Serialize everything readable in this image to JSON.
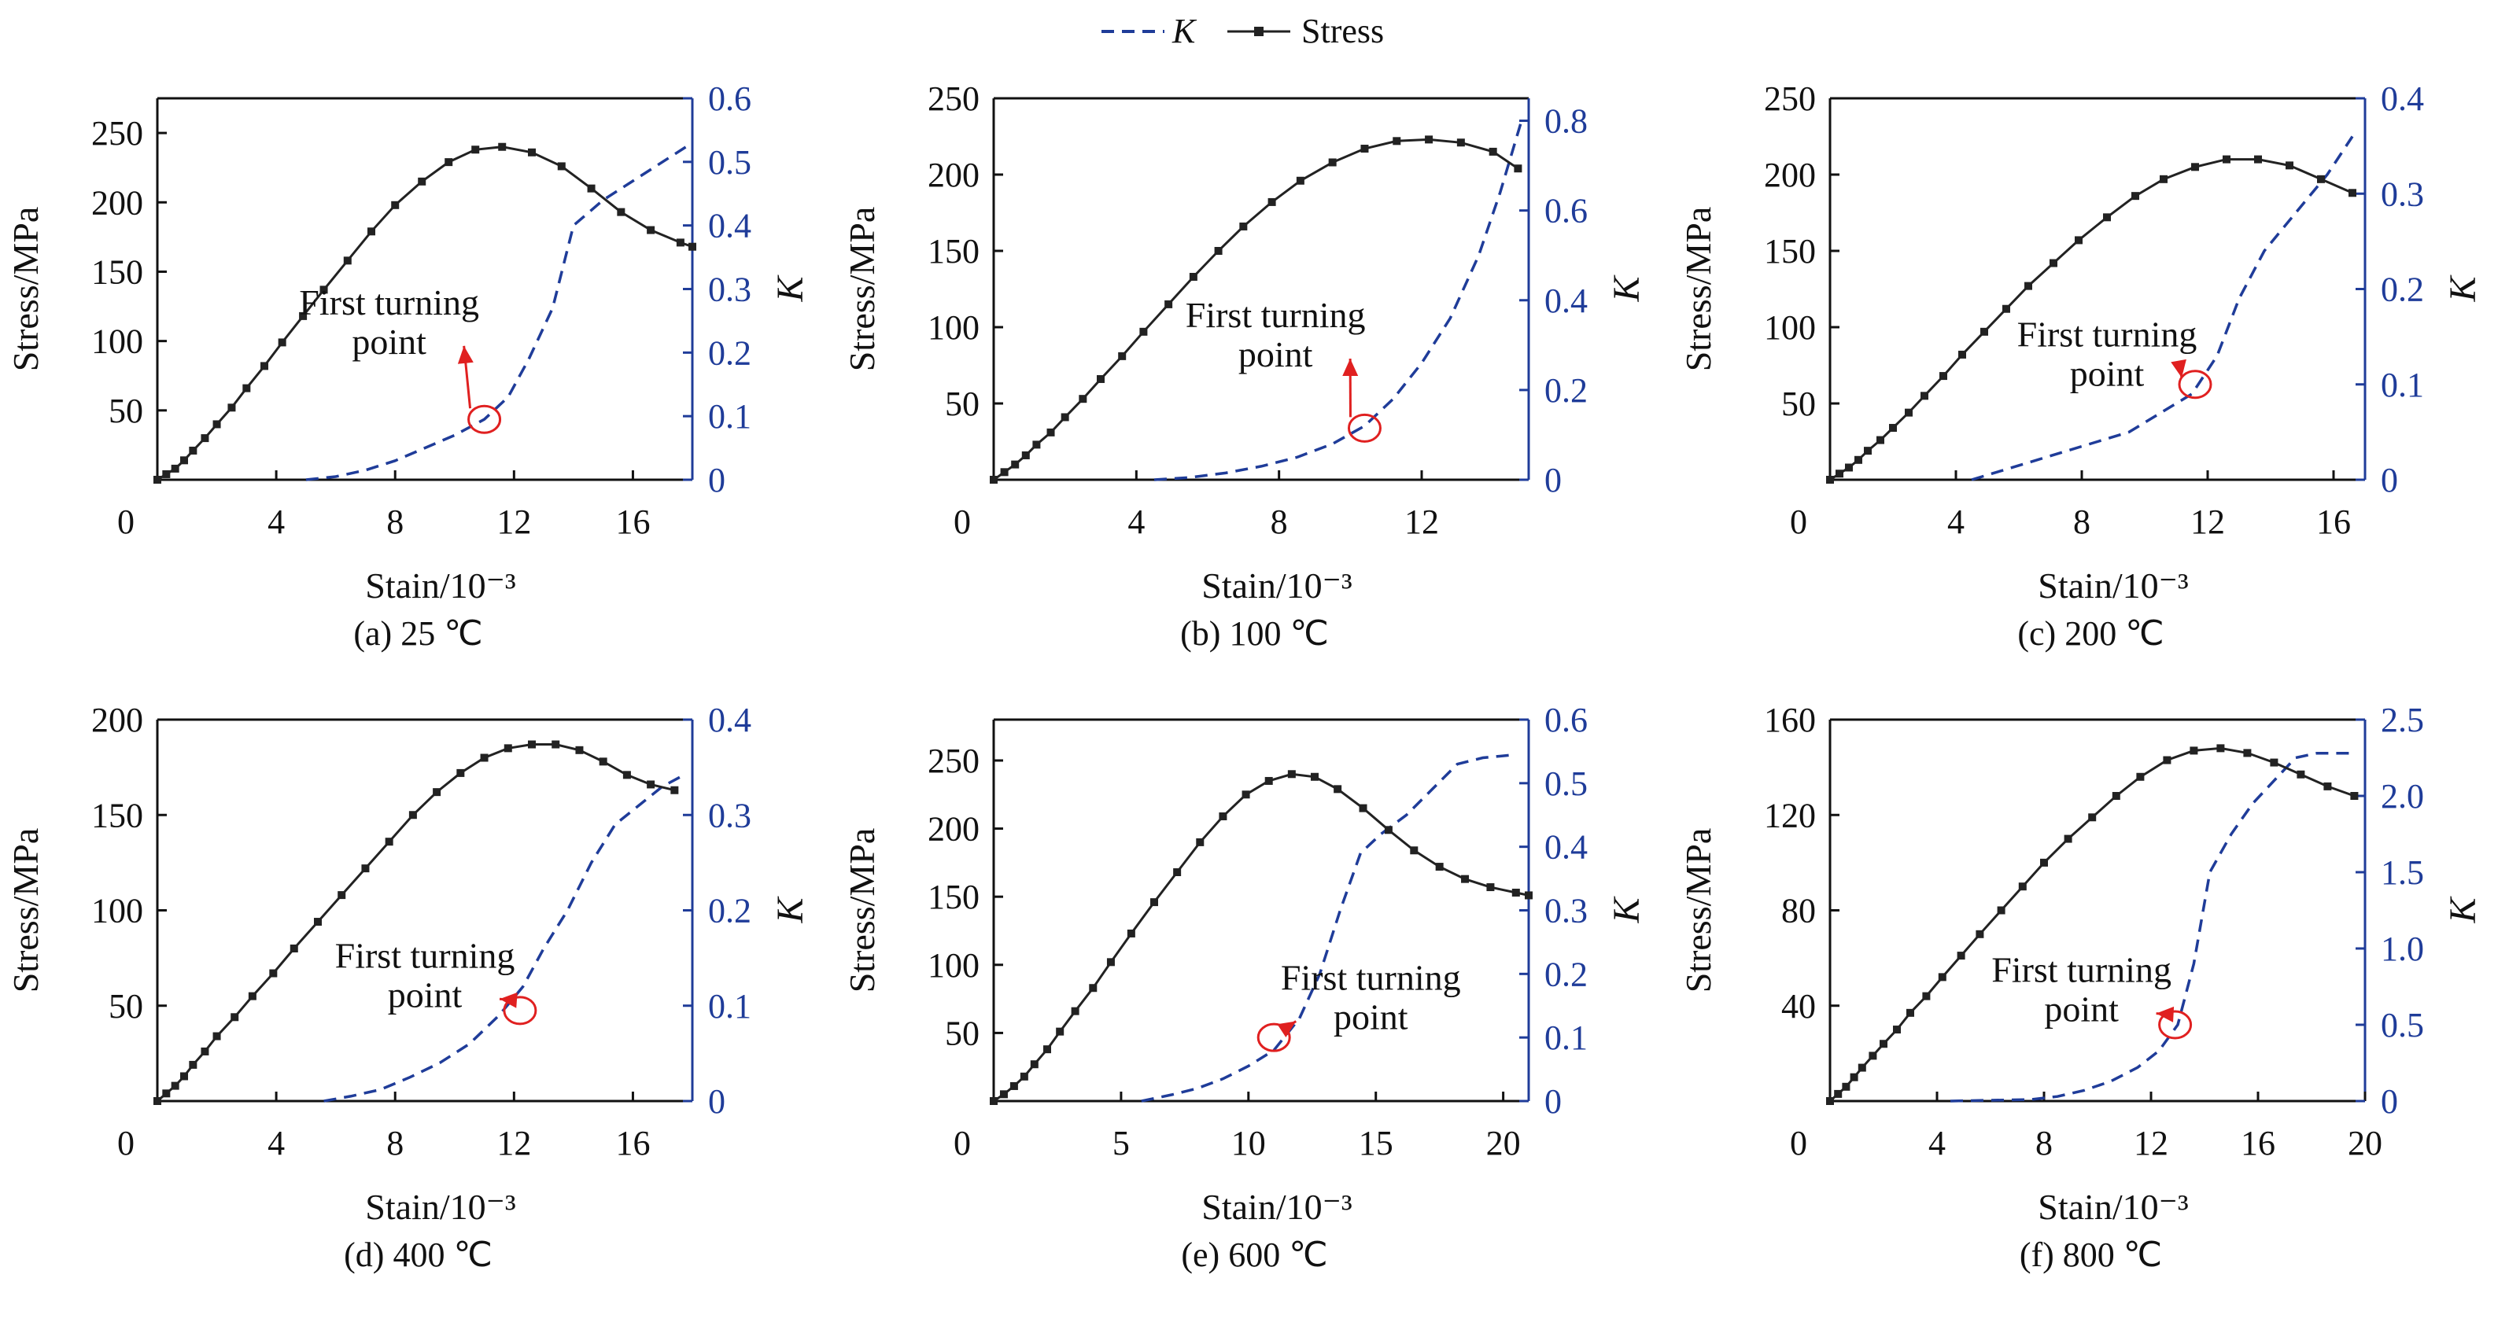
{
  "legend": {
    "k_label": "K",
    "stress_label": "Stress",
    "k_color": "#1f3c99",
    "stress_color": "#222222"
  },
  "annotation_text": [
    "First turning",
    "point"
  ],
  "chart_data": [
    {
      "type": "line",
      "caption": "(a) 25 ℃",
      "xlabel": "Stain/10⁻³",
      "ylabel": "Stress/MPa",
      "y2label": "K",
      "xlim": [
        0,
        18
      ],
      "xticks": [
        0,
        4,
        8,
        12,
        16
      ],
      "ylim": [
        0,
        275
      ],
      "yticks": [
        50,
        100,
        150,
        200,
        250
      ],
      "y2lim": [
        0,
        0.6
      ],
      "y2ticks": [
        0,
        0.1,
        0.2,
        0.3,
        0.4,
        0.5,
        0.6
      ],
      "y2ticklabels": [
        "0",
        "0.1",
        "0.2",
        "0.3",
        "0.4",
        "0.5",
        "0.6"
      ],
      "stress": {
        "x": [
          0,
          0.3,
          0.6,
          0.9,
          1.2,
          1.6,
          2.0,
          2.5,
          3.0,
          3.6,
          4.2,
          4.9,
          5.6,
          6.4,
          7.2,
          8.0,
          8.9,
          9.8,
          10.7,
          11.6,
          12.6,
          13.6,
          14.6,
          15.6,
          16.6,
          17.6,
          18.0
        ],
        "y": [
          0,
          4,
          8,
          14,
          21,
          30,
          40,
          52,
          66,
          82,
          99,
          118,
          137,
          158,
          179,
          198,
          215,
          229,
          238,
          240,
          236,
          226,
          210,
          193,
          180,
          171,
          168
        ]
      },
      "k": {
        "x": [
          5.0,
          6.0,
          7.0,
          8.0,
          9.0,
          10.0,
          11.0,
          11.8,
          12.5,
          13.3,
          14.0,
          15.0,
          16.0,
          17.0,
          18.0
        ],
        "y": [
          0,
          0.005,
          0.015,
          0.03,
          0.05,
          0.07,
          0.095,
          0.13,
          0.19,
          0.27,
          0.4,
          0.44,
          0.47,
          0.5,
          0.53
        ]
      },
      "circle": {
        "x": 11.0,
        "y": 0.095
      },
      "label_pos": {
        "x": 7.8,
        "y": 0.26
      }
    },
    {
      "type": "line",
      "caption": "(b) 100 ℃",
      "xlabel": "Stain/10⁻³",
      "ylabel": "Stress/MPa",
      "y2label": "K",
      "xlim": [
        0,
        15
      ],
      "xticks": [
        0,
        4,
        8,
        12
      ],
      "ylim": [
        0,
        250
      ],
      "yticks": [
        50,
        100,
        150,
        200,
        250
      ],
      "y2lim": [
        0,
        0.85
      ],
      "y2ticks": [
        0,
        0.2,
        0.4,
        0.6,
        0.8
      ],
      "y2ticklabels": [
        "0",
        "0.2",
        "0.4",
        "0.6",
        "0.8"
      ],
      "stress": {
        "x": [
          0,
          0.3,
          0.6,
          0.9,
          1.2,
          1.6,
          2.0,
          2.5,
          3.0,
          3.6,
          4.2,
          4.9,
          5.6,
          6.3,
          7.0,
          7.8,
          8.6,
          9.5,
          10.4,
          11.3,
          12.2,
          13.1,
          14.0,
          14.7
        ],
        "y": [
          0,
          5,
          10,
          16,
          23,
          31,
          41,
          53,
          66,
          81,
          97,
          115,
          133,
          150,
          166,
          182,
          196,
          208,
          217,
          222,
          223,
          221,
          215,
          204
        ]
      },
      "k": {
        "x": [
          4.5,
          5.5,
          6.5,
          7.5,
          8.5,
          9.5,
          10.4,
          11.2,
          12.0,
          12.8,
          13.6,
          14.2,
          14.8
        ],
        "y": [
          0,
          0.005,
          0.015,
          0.03,
          0.05,
          0.08,
          0.12,
          0.18,
          0.26,
          0.36,
          0.5,
          0.64,
          0.8
        ]
      },
      "circle": {
        "x": 10.4,
        "y": 0.115
      },
      "label_pos": {
        "x": 7.9,
        "y": 0.34
      }
    },
    {
      "type": "line",
      "caption": "(c) 200 ℃",
      "xlabel": "Stain/10⁻³",
      "ylabel": "Stress/MPa",
      "y2label": "K",
      "xlim": [
        0,
        17
      ],
      "xticks": [
        0,
        4,
        8,
        12,
        16
      ],
      "ylim": [
        0,
        250
      ],
      "yticks": [
        50,
        100,
        150,
        200,
        250
      ],
      "y2lim": [
        0,
        0.4
      ],
      "y2ticks": [
        0,
        0.1,
        0.2,
        0.3,
        0.4
      ],
      "y2ticklabels": [
        "0",
        "0.1",
        "0.2",
        "0.3",
        "0.4"
      ],
      "stress": {
        "x": [
          0,
          0.3,
          0.6,
          0.9,
          1.2,
          1.6,
          2.0,
          2.5,
          3.0,
          3.6,
          4.2,
          4.9,
          5.6,
          6.3,
          7.1,
          7.9,
          8.8,
          9.7,
          10.6,
          11.6,
          12.6,
          13.6,
          14.6,
          15.6,
          16.6
        ],
        "y": [
          0,
          4,
          8,
          13,
          19,
          26,
          34,
          44,
          55,
          68,
          82,
          97,
          112,
          127,
          142,
          157,
          172,
          186,
          197,
          205,
          210,
          210,
          206,
          197,
          188
        ]
      },
      "k": {
        "x": [
          4.5,
          5.5,
          6.5,
          7.5,
          8.5,
          9.5,
          10.5,
          11.5,
          12.3,
          13.0,
          13.8,
          14.8,
          15.8,
          16.6
        ],
        "y": [
          0,
          0.01,
          0.02,
          0.03,
          0.04,
          0.05,
          0.07,
          0.09,
          0.13,
          0.19,
          0.24,
          0.28,
          0.32,
          0.36
        ]
      },
      "circle": {
        "x": 11.6,
        "y": 0.1
      },
      "label_pos": {
        "x": 8.8,
        "y": 0.14
      }
    },
    {
      "type": "line",
      "caption": "(d) 400 ℃",
      "xlabel": "Stain/10⁻³",
      "ylabel": "Stress/MPa",
      "y2label": "K",
      "xlim": [
        0,
        18
      ],
      "xticks": [
        0,
        4,
        8,
        12,
        16
      ],
      "ylim": [
        0,
        200
      ],
      "yticks": [
        50,
        100,
        150,
        200
      ],
      "y2lim": [
        0,
        0.4
      ],
      "y2ticks": [
        0,
        0.1,
        0.2,
        0.3,
        0.4
      ],
      "y2ticklabels": [
        "0",
        "0.1",
        "0.2",
        "0.3",
        "0.4"
      ],
      "stress": {
        "x": [
          0,
          0.3,
          0.6,
          0.9,
          1.2,
          1.6,
          2.0,
          2.6,
          3.2,
          3.9,
          4.6,
          5.4,
          6.2,
          7.0,
          7.8,
          8.6,
          9.4,
          10.2,
          11.0,
          11.8,
          12.6,
          13.4,
          14.2,
          15.0,
          15.8,
          16.6,
          17.4
        ],
        "y": [
          0,
          4,
          8,
          13,
          19,
          26,
          34,
          44,
          55,
          67,
          80,
          94,
          108,
          122,
          136,
          150,
          162,
          172,
          180,
          185,
          187,
          187,
          184,
          178,
          171,
          166,
          163
        ]
      },
      "k": {
        "x": [
          5.6,
          6.5,
          7.5,
          8.5,
          9.5,
          10.5,
          11.5,
          12.3,
          13.0,
          13.8,
          14.6,
          15.4,
          16.2,
          17.0,
          17.6
        ],
        "y": [
          0,
          0.005,
          0.012,
          0.025,
          0.04,
          0.06,
          0.09,
          0.12,
          0.16,
          0.2,
          0.25,
          0.29,
          0.31,
          0.33,
          0.34
        ]
      },
      "circle": {
        "x": 12.2,
        "y": 0.095
      },
      "label_pos": {
        "x": 9.0,
        "y": 0.14
      }
    },
    {
      "type": "line",
      "caption": "(e) 600 ℃",
      "xlabel": "Stain/10⁻³",
      "ylabel": "Stress/MPa",
      "y2label": "K",
      "xlim": [
        0,
        21
      ],
      "xticks": [
        0,
        5,
        10,
        15,
        20
      ],
      "ylim": [
        0,
        280
      ],
      "yticks": [
        50,
        100,
        150,
        200,
        250
      ],
      "y2lim": [
        0,
        0.6
      ],
      "y2ticks": [
        0,
        0.1,
        0.2,
        0.3,
        0.4,
        0.5,
        0.6
      ],
      "y2ticklabels": [
        "0",
        "0.1",
        "0.2",
        "0.3",
        "0.4",
        "0.5",
        "0.6"
      ],
      "stress": {
        "x": [
          0,
          0.4,
          0.8,
          1.2,
          1.6,
          2.1,
          2.6,
          3.2,
          3.9,
          4.6,
          5.4,
          6.3,
          7.2,
          8.1,
          9.0,
          9.9,
          10.8,
          11.7,
          12.6,
          13.5,
          14.5,
          15.5,
          16.5,
          17.5,
          18.5,
          19.5,
          20.5,
          21.0
        ],
        "y": [
          0,
          5,
          11,
          18,
          27,
          38,
          51,
          66,
          83,
          102,
          123,
          146,
          168,
          190,
          209,
          225,
          235,
          240,
          238,
          229,
          215,
          199,
          184,
          172,
          163,
          157,
          153,
          151
        ]
      },
      "k": {
        "x": [
          5.8,
          7.0,
          8.0,
          9.0,
          10.0,
          11.0,
          12.0,
          12.8,
          13.6,
          14.4,
          15.2,
          16.2,
          17.2,
          18.2,
          19.2,
          20.5
        ],
        "y": [
          0,
          0.01,
          0.02,
          0.035,
          0.055,
          0.08,
          0.13,
          0.2,
          0.3,
          0.39,
          0.42,
          0.45,
          0.49,
          0.53,
          0.54,
          0.545
        ]
      },
      "circle": {
        "x": 11.0,
        "y": 0.1
      },
      "label_pos": {
        "x": 14.8,
        "y": 0.175
      }
    },
    {
      "type": "line",
      "caption": "(f) 800 ℃",
      "xlabel": "Stain/10⁻³",
      "ylabel": "Stress/MPa",
      "y2label": "K",
      "xlim": [
        0,
        20
      ],
      "xticks": [
        0,
        4,
        8,
        12,
        16,
        20
      ],
      "ylim": [
        0,
        160
      ],
      "yticks": [
        40,
        80,
        120,
        160
      ],
      "y2lim": [
        0,
        2.5
      ],
      "y2ticks": [
        0,
        0.5,
        1.0,
        1.5,
        2.0,
        2.5
      ],
      "y2ticklabels": [
        "0",
        "0.5",
        "1.0",
        "1.5",
        "2.0",
        "2.5"
      ],
      "stress": {
        "x": [
          0,
          0.3,
          0.6,
          0.9,
          1.2,
          1.6,
          2.0,
          2.5,
          3.0,
          3.6,
          4.2,
          4.9,
          5.6,
          6.4,
          7.2,
          8.0,
          8.9,
          9.8,
          10.7,
          11.6,
          12.6,
          13.6,
          14.6,
          15.6,
          16.6,
          17.6,
          18.6,
          19.6
        ],
        "y": [
          0,
          3,
          6,
          10,
          14,
          19,
          24,
          30,
          37,
          44,
          52,
          61,
          70,
          80,
          90,
          100,
          110,
          119,
          128,
          136,
          143,
          147,
          148,
          146,
          142,
          137,
          132,
          128
        ]
      },
      "k": {
        "x": [
          4.5,
          6.0,
          7.5,
          8.5,
          9.5,
          10.5,
          11.5,
          12.3,
          13.0,
          13.6,
          14.2,
          15.0,
          15.8,
          16.6,
          17.4,
          18.2,
          19.6
        ],
        "y": [
          0,
          0.005,
          0.01,
          0.03,
          0.07,
          0.13,
          0.22,
          0.33,
          0.5,
          0.9,
          1.5,
          1.75,
          1.95,
          2.1,
          2.25,
          2.28,
          2.28
        ]
      },
      "circle": {
        "x": 12.9,
        "y": 0.5
      },
      "label_pos": {
        "x": 9.4,
        "y": 0.78
      }
    }
  ]
}
